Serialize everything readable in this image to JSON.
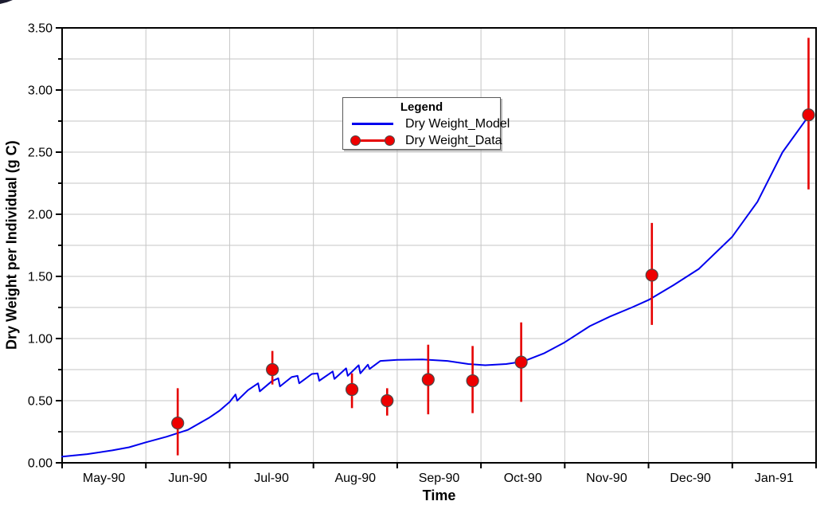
{
  "chart_data": {
    "type": "line",
    "title": "",
    "xlabel": "Time",
    "ylabel": "Dry Weight per Individual (g C)",
    "axes": {
      "ylim": [
        0,
        3.5
      ],
      "y_major_step": 0.5,
      "y_minor_step": 0.25,
      "x_months": 9,
      "grid": "on",
      "y_ticks": [
        {
          "label": "0.00",
          "value": 0.0
        },
        {
          "label": "0.50",
          "value": 0.5
        },
        {
          "label": "1.00",
          "value": 1.0
        },
        {
          "label": "1.50",
          "value": 1.5
        },
        {
          "label": "2.00",
          "value": 2.0
        },
        {
          "label": "2.50",
          "value": 2.5
        },
        {
          "label": "3.00",
          "value": 3.0
        },
        {
          "label": "3.50",
          "value": 3.5
        }
      ],
      "x_tick_labels": [
        "May-90",
        "Jun-90",
        "Jul-90",
        "Aug-90",
        "Sep-90",
        "Oct-90",
        "Nov-90",
        "Dec-90",
        "Jan-91"
      ]
    },
    "colors": {
      "model_line": "#0000ee",
      "data_point_fill": "#ee0000",
      "data_point_stroke": "#4a4a4a",
      "error_bar": "#e60000",
      "grid": "#c6c6c6",
      "frame": "#000000"
    },
    "legend": {
      "title": "Legend",
      "position": "upper-center-left",
      "entries": [
        {
          "name": "Dry Weight_Model",
          "type": "line",
          "color": "#0000ee"
        },
        {
          "name": "Dry Weight_Data",
          "type": "point",
          "color": "#ee0000"
        }
      ]
    },
    "series": [
      {
        "name": "Dry Weight_Model",
        "type": "line",
        "x_unit": "months-after-May-1-1990",
        "points": [
          [
            0,
            0.05
          ],
          [
            0.3,
            0.07
          ],
          [
            0.6,
            0.1
          ],
          [
            0.8,
            0.125
          ],
          [
            1.0,
            0.165
          ],
          [
            1.25,
            0.21
          ],
          [
            1.5,
            0.265
          ],
          [
            1.75,
            0.36
          ],
          [
            1.88,
            0.42
          ],
          [
            2.0,
            0.49
          ],
          [
            2.07,
            0.55
          ],
          [
            2.09,
            0.5
          ],
          [
            2.22,
            0.585
          ],
          [
            2.34,
            0.64
          ],
          [
            2.36,
            0.575
          ],
          [
            2.5,
            0.655
          ],
          [
            2.58,
            0.68
          ],
          [
            2.6,
            0.615
          ],
          [
            2.74,
            0.69
          ],
          [
            2.81,
            0.7
          ],
          [
            2.83,
            0.64
          ],
          [
            2.98,
            0.715
          ],
          [
            3.05,
            0.72
          ],
          [
            3.07,
            0.66
          ],
          [
            3.23,
            0.735
          ],
          [
            3.25,
            0.675
          ],
          [
            3.39,
            0.76
          ],
          [
            3.41,
            0.7
          ],
          [
            3.54,
            0.785
          ],
          [
            3.56,
            0.72
          ],
          [
            3.65,
            0.79
          ],
          [
            3.67,
            0.755
          ],
          [
            3.8,
            0.82
          ],
          [
            4.0,
            0.828
          ],
          [
            4.3,
            0.832
          ],
          [
            4.6,
            0.82
          ],
          [
            4.85,
            0.795
          ],
          [
            5.05,
            0.785
          ],
          [
            5.3,
            0.795
          ],
          [
            5.5,
            0.815
          ],
          [
            5.75,
            0.88
          ],
          [
            6.0,
            0.97
          ],
          [
            6.3,
            1.1
          ],
          [
            6.55,
            1.18
          ],
          [
            6.8,
            1.25
          ],
          [
            7.0,
            1.31
          ],
          [
            7.3,
            1.43
          ],
          [
            7.6,
            1.56
          ],
          [
            8.0,
            1.82
          ],
          [
            8.3,
            2.1
          ],
          [
            8.6,
            2.5
          ],
          [
            8.91,
            2.79
          ]
        ]
      },
      {
        "name": "Dry Weight_Data",
        "type": "scatter-errorbar",
        "x_unit": "months-after-May-1-1990",
        "points": [
          {
            "x": 1.38,
            "y": 0.32,
            "lo": 0.06,
            "hi": 0.6
          },
          {
            "x": 2.51,
            "y": 0.75,
            "lo": 0.63,
            "hi": 0.9
          },
          {
            "x": 3.46,
            "y": 0.59,
            "lo": 0.44,
            "hi": 0.72
          },
          {
            "x": 3.88,
            "y": 0.5,
            "lo": 0.38,
            "hi": 0.6
          },
          {
            "x": 4.37,
            "y": 0.67,
            "lo": 0.39,
            "hi": 0.95
          },
          {
            "x": 4.9,
            "y": 0.66,
            "lo": 0.4,
            "hi": 0.94
          },
          {
            "x": 5.48,
            "y": 0.81,
            "lo": 0.49,
            "hi": 1.13
          },
          {
            "x": 7.04,
            "y": 1.51,
            "lo": 1.11,
            "hi": 1.93
          },
          {
            "x": 8.91,
            "y": 2.8,
            "lo": 2.2,
            "hi": 3.42
          }
        ]
      }
    ]
  }
}
